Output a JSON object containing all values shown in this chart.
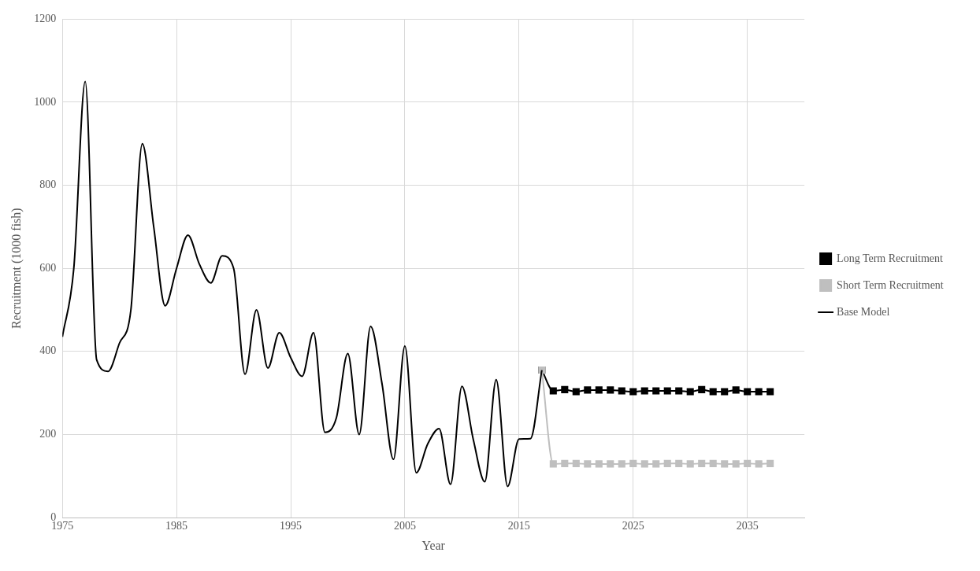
{
  "chart_data": {
    "type": "line",
    "xlabel": "Year",
    "ylabel": "Recruitment (1000 fish)",
    "xlim": [
      1975,
      2040
    ],
    "xticks": [
      1975,
      1985,
      1995,
      2005,
      2015,
      2025,
      2035
    ],
    "ylim": [
      0,
      1200
    ],
    "yticks": [
      0,
      200,
      400,
      600,
      800,
      1000,
      1200
    ],
    "grid": true,
    "legend": "right",
    "series": [
      {
        "name": "Long Term Recruitment",
        "color": "#000000",
        "marker": "square",
        "x": [
          2017,
          2018,
          2019,
          2020,
          2021,
          2022,
          2023,
          2024,
          2025,
          2026,
          2027,
          2028,
          2029,
          2030,
          2031,
          2032,
          2033,
          2034,
          2035,
          2036,
          2037
        ],
        "values": [
          355,
          305,
          308,
          303,
          307,
          307,
          307,
          305,
          303,
          305,
          305,
          305,
          305,
          303,
          308,
          303,
          303,
          307,
          303,
          303,
          303
        ]
      },
      {
        "name": "Short Term Recruitment",
        "color": "#bfbfbf",
        "marker": "square",
        "x": [
          2017,
          2018,
          2019,
          2020,
          2021,
          2022,
          2023,
          2024,
          2025,
          2026,
          2027,
          2028,
          2029,
          2030,
          2031,
          2032,
          2033,
          2034,
          2035,
          2036,
          2037
        ],
        "values": [
          355,
          129,
          130,
          130,
          129,
          129,
          129,
          129,
          130,
          129,
          129,
          130,
          130,
          129,
          130,
          130,
          129,
          129,
          130,
          129,
          130
        ]
      },
      {
        "name": "Base Model",
        "color": "#000000",
        "marker": "none",
        "x": [
          1975,
          1976,
          1977,
          1978,
          1979,
          1980,
          1981,
          1982,
          1983,
          1984,
          1985,
          1986,
          1987,
          1988,
          1989,
          1990,
          1991,
          1992,
          1993,
          1994,
          1995,
          1996,
          1997,
          1998,
          1999,
          2000,
          2001,
          2002,
          2003,
          2004,
          2005,
          2006,
          2007,
          2008,
          2009,
          2010,
          2011,
          2012,
          2013,
          2014,
          2015,
          2016,
          2017
        ],
        "values": [
          435,
          600,
          1050,
          380,
          352,
          420,
          500,
          900,
          700,
          510,
          600,
          680,
          610,
          565,
          630,
          600,
          345,
          500,
          360,
          445,
          385,
          340,
          445,
          205,
          240,
          395,
          200,
          460,
          322,
          140,
          413,
          108,
          177,
          214,
          80,
          316,
          187,
          86,
          332,
          75,
          189,
          190,
          355
        ]
      }
    ]
  }
}
